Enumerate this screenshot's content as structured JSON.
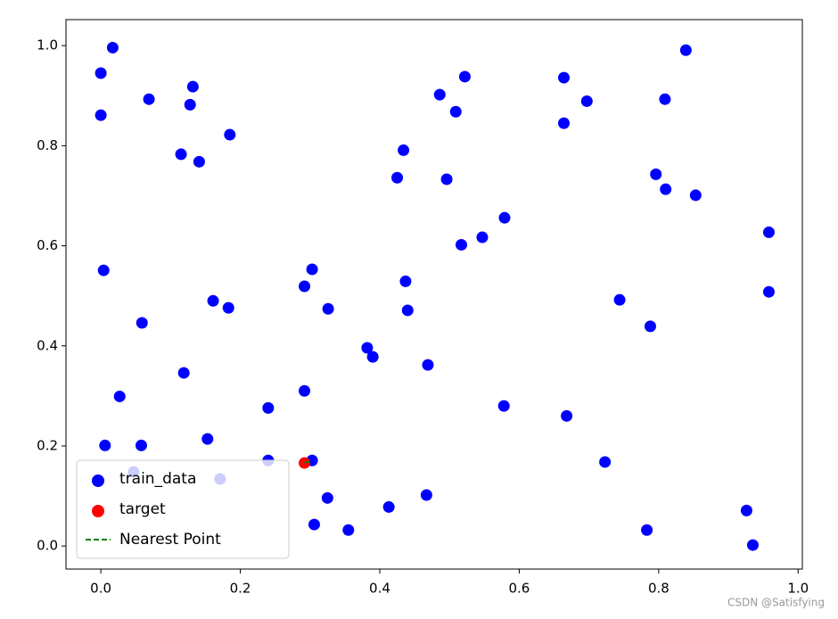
{
  "chart_data": {
    "type": "scatter",
    "xlim": [
      -0.05,
      1.006
    ],
    "ylim": [
      -0.046,
      1.052
    ],
    "xticks": [
      {
        "value": 0,
        "label": "0.0"
      },
      {
        "value": 0.2,
        "label": "0.2"
      },
      {
        "value": 0.4,
        "label": "0.4"
      },
      {
        "value": 0.6,
        "label": "0.6"
      },
      {
        "value": 0.8,
        "label": "0.8"
      },
      {
        "value": 1,
        "label": "1.0"
      }
    ],
    "yticks": [
      {
        "value": 0,
        "label": "0.0"
      },
      {
        "value": 0.2,
        "label": "0.2"
      },
      {
        "value": 0.4,
        "label": "0.4"
      },
      {
        "value": 0.6,
        "label": "0.6"
      },
      {
        "value": 0.8,
        "label": "0.8"
      },
      {
        "value": 1,
        "label": "1.0"
      }
    ],
    "legend": "lower left",
    "series": [
      {
        "name": "train_data",
        "color": "#0000ff",
        "kind": "scatter",
        "x": [
          0.0,
          0.017,
          0.0,
          0.069,
          0.132,
          0.128,
          0.185,
          0.115,
          0.141,
          0.004,
          0.059,
          0.161,
          0.183,
          0.119,
          0.027,
          0.006,
          0.058,
          0.153,
          0.047,
          0.171,
          0.24,
          0.24,
          0.292,
          0.292,
          0.303,
          0.326,
          0.303,
          0.306,
          0.325,
          0.355,
          0.382,
          0.39,
          0.413,
          0.467,
          0.469,
          0.44,
          0.437,
          0.425,
          0.434,
          0.486,
          0.509,
          0.522,
          0.496,
          0.517,
          0.547,
          0.579,
          0.578,
          0.664,
          0.664,
          0.697,
          0.668,
          0.723,
          0.744,
          0.788,
          0.783,
          0.796,
          0.81,
          0.809,
          0.839,
          0.853,
          0.958,
          0.958,
          0.926,
          0.935
        ],
        "values": [
          0.945,
          0.996,
          0.861,
          0.893,
          0.918,
          0.882,
          0.822,
          0.783,
          0.768,
          0.551,
          0.446,
          0.49,
          0.476,
          0.346,
          0.299,
          0.201,
          0.201,
          0.214,
          0.148,
          0.134,
          0.276,
          0.171,
          0.31,
          0.519,
          0.553,
          0.474,
          0.171,
          0.043,
          0.096,
          0.032,
          0.396,
          0.378,
          0.078,
          0.102,
          0.362,
          0.471,
          0.529,
          0.736,
          0.791,
          0.902,
          0.868,
          0.938,
          0.733,
          0.602,
          0.617,
          0.656,
          0.28,
          0.936,
          0.845,
          0.889,
          0.26,
          0.168,
          0.492,
          0.439,
          0.032,
          0.743,
          0.713,
          0.893,
          0.991,
          0.701,
          0.627,
          0.508,
          0.071,
          0.002
        ]
      },
      {
        "name": "target",
        "color": "#ff0000",
        "kind": "scatter",
        "x": [
          0.292
        ],
        "values": [
          0.166
        ]
      },
      {
        "name": "Nearest Point",
        "color": "#008000",
        "kind": "line",
        "dashed": true,
        "x": [
          0.292,
          0.303
        ],
        "values": [
          0.166,
          0.171
        ]
      }
    ],
    "watermark": "CSDN @Satisfying"
  }
}
